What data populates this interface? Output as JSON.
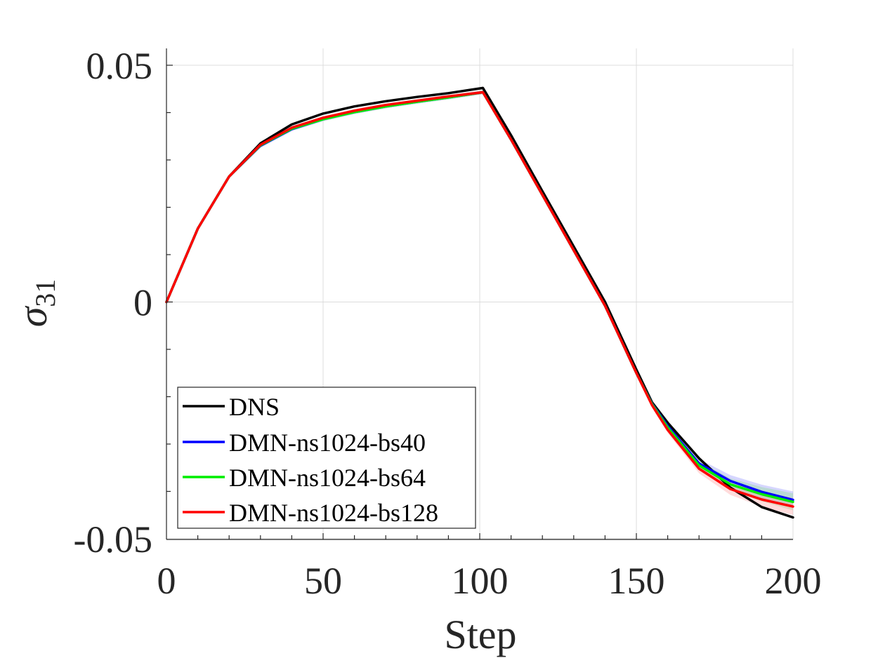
{
  "chart_data": {
    "type": "line",
    "title": "",
    "xlabel": "Step",
    "ylabel_symbol": "σ",
    "ylabel_subscript": "31",
    "xlim": [
      0,
      200
    ],
    "ylim": [
      -0.05,
      0.05
    ],
    "xticks": [
      0,
      50,
      100,
      150,
      200
    ],
    "xtick_labels": [
      "0",
      "50",
      "100",
      "150",
      "200"
    ],
    "yticks": [
      -0.05,
      0,
      0.05
    ],
    "ytick_labels": [
      "-0.05",
      "0",
      "0.05"
    ],
    "grid": true,
    "legend_position": "bottom-left",
    "series": [
      {
        "name": "DNS",
        "color": "#000000",
        "band": null,
        "x": [
          0,
          10,
          20,
          30,
          40,
          50,
          60,
          70,
          80,
          90,
          101,
          110,
          120,
          130,
          140,
          150,
          155,
          160,
          170,
          180,
          190,
          200
        ],
        "y": [
          0,
          0.0155,
          0.0265,
          0.0335,
          0.0375,
          0.0398,
          0.0413,
          0.0424,
          0.0433,
          0.0441,
          0.0452,
          0.0352,
          0.0234,
          0.0117,
          0.0,
          -0.0143,
          -0.0212,
          -0.0255,
          -0.033,
          -0.0392,
          -0.0433,
          -0.0455
        ]
      },
      {
        "name": "DMN-ns1024-bs40",
        "color": "#0000ff",
        "band": "#8a8aff",
        "x": [
          0,
          10,
          20,
          30,
          40,
          50,
          60,
          70,
          80,
          90,
          101,
          110,
          120,
          130,
          140,
          150,
          155,
          160,
          170,
          180,
          190,
          200
        ],
        "y": [
          0,
          0.0155,
          0.0265,
          0.033,
          0.0365,
          0.0386,
          0.0401,
          0.0413,
          0.0423,
          0.0432,
          0.0443,
          0.0343,
          0.0226,
          0.0109,
          -0.0008,
          -0.015,
          -0.0215,
          -0.0262,
          -0.0341,
          -0.0378,
          -0.0401,
          -0.0418
        ]
      },
      {
        "name": "DMN-ns1024-bs64",
        "color": "#00ee00",
        "band": "#88e088",
        "x": [
          0,
          10,
          20,
          30,
          40,
          50,
          60,
          70,
          80,
          90,
          101,
          110,
          120,
          130,
          140,
          150,
          155,
          160,
          170,
          180,
          190,
          200
        ],
        "y": [
          0,
          0.0155,
          0.0265,
          0.0331,
          0.0366,
          0.0386,
          0.0401,
          0.0413,
          0.0423,
          0.0432,
          0.0443,
          0.0343,
          0.0226,
          0.0109,
          -0.0008,
          -0.015,
          -0.0216,
          -0.0265,
          -0.0345,
          -0.0385,
          -0.0406,
          -0.0422
        ]
      },
      {
        "name": "DMN-ns1024-bs128",
        "color": "#ff0000",
        "band": "#ff9a9a",
        "x": [
          0,
          10,
          20,
          30,
          40,
          50,
          60,
          70,
          80,
          90,
          101,
          110,
          120,
          130,
          140,
          150,
          155,
          160,
          170,
          180,
          190,
          200
        ],
        "y": [
          0,
          0.0155,
          0.0265,
          0.0332,
          0.0368,
          0.0389,
          0.0404,
          0.0416,
          0.0425,
          0.0434,
          0.0443,
          0.0343,
          0.0226,
          0.0109,
          -0.0008,
          -0.015,
          -0.0218,
          -0.027,
          -0.0352,
          -0.0395,
          -0.0417,
          -0.0432
        ]
      }
    ]
  }
}
